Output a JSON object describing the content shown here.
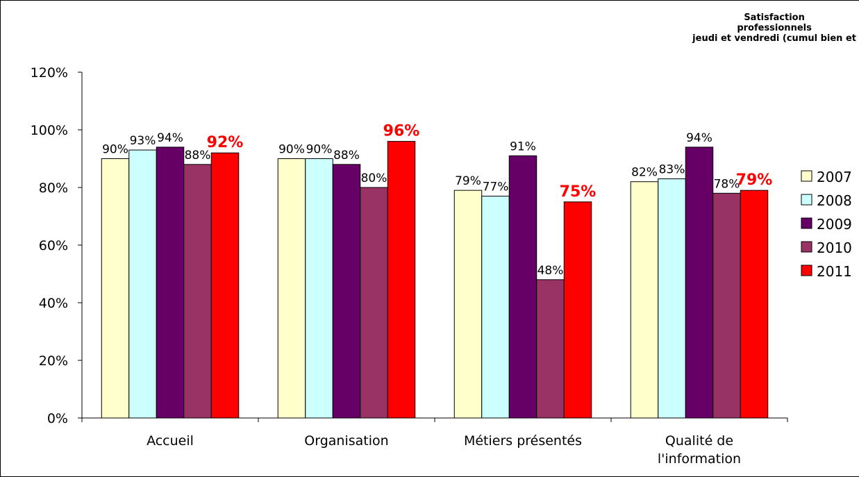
{
  "chart_data": {
    "type": "bar",
    "title_lines": [
      "Satisfaction",
      "professionnels",
      "jeudi et vendredi (cumul bien et"
    ],
    "categories": [
      "Accueil",
      "Organisation",
      "Métiers présentés",
      "Qualité de\nl'information"
    ],
    "series": [
      {
        "name": "2007",
        "color": "#FFFFCC",
        "values": [
          90,
          90,
          79,
          82
        ],
        "labels": [
          "90%",
          "90%",
          "79%",
          "82%"
        ]
      },
      {
        "name": "2008",
        "color": "#CCFFFF",
        "values": [
          93,
          90,
          77,
          83
        ],
        "labels": [
          "93%",
          "90%",
          "77%",
          "83%"
        ]
      },
      {
        "name": "2009",
        "color": "#660066",
        "values": [
          94,
          88,
          91,
          94
        ],
        "labels": [
          "94%",
          "88%",
          "91%",
          "94%"
        ]
      },
      {
        "name": "2010",
        "color": "#993366",
        "values": [
          88,
          80,
          48,
          78
        ],
        "labels": [
          "88%",
          "80%",
          "48%",
          "78%"
        ]
      },
      {
        "name": "2011",
        "color": "#FF0000",
        "values": [
          92,
          96,
          75,
          79
        ],
        "labels": [
          "92%",
          "96%",
          "75%",
          "79%"
        ],
        "label_color": "#FF0000",
        "label_bold": true
      }
    ],
    "yticks": [
      "0%",
      "20%",
      "40%",
      "60%",
      "80%",
      "100%",
      "120%"
    ],
    "ylim": [
      0,
      120
    ],
    "grid": false,
    "legend_position": "right"
  }
}
